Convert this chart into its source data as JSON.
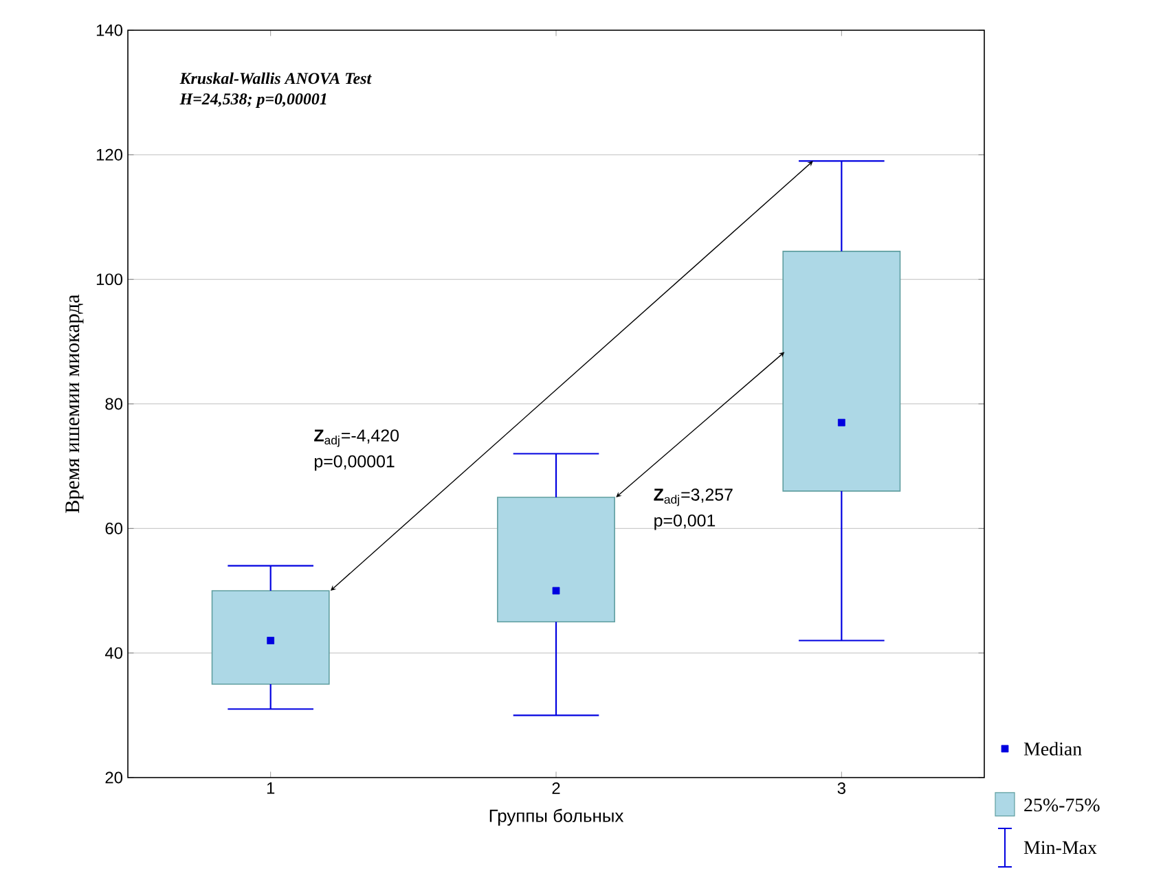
{
  "chart_data": {
    "type": "box",
    "title": "Kruskal-Wallis ANOVA Test",
    "subtitle": "H=24,538; p=0,00001",
    "xlabel": "Группы больных",
    "ylabel": "Время ишемии миокарда",
    "categories": [
      "1",
      "2",
      "3"
    ],
    "series": [
      {
        "color": "#add8e6",
        "boxes": [
          {
            "low": 31,
            "q1": 35,
            "median": 42,
            "q3": 50,
            "high": 54
          },
          {
            "low": 30,
            "q1": 45,
            "median": 50,
            "q3": 65,
            "high": 72
          },
          {
            "low": 42,
            "q1": 66,
            "median": 77,
            "q3": 104.5,
            "high": 119
          }
        ]
      }
    ],
    "ylim": [
      20,
      140
    ],
    "yticks": [
      20,
      40,
      60,
      80,
      100,
      120,
      140
    ],
    "grid": "y",
    "marker": "square",
    "annotations": [
      "**Z**$_{adj}$=-4,420",
      "p=0,00001",
      "**Z**$_{adj}$=3,257",
      "p=0,001",
      "Median",
      "25%-75%",
      "Min-Max"
    ]
  }
}
